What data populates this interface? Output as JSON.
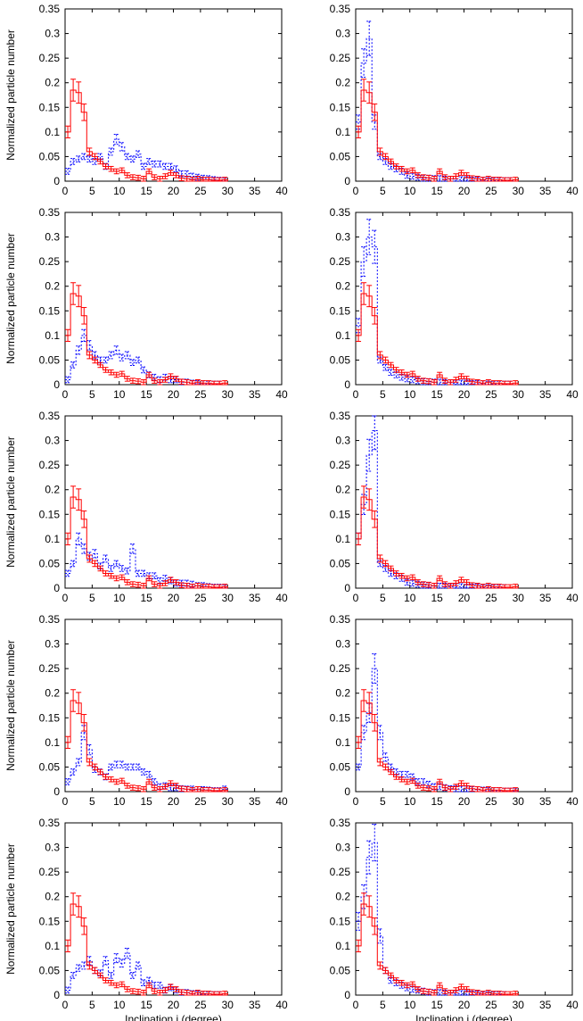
{
  "chart_data": {
    "type": "histogram-grid",
    "xlabel": "Inclination i (degree)",
    "ylabel": "Normalized particle number",
    "xlim": [
      0,
      40
    ],
    "ylim": [
      0,
      0.35
    ],
    "xticks": [
      "0",
      "5",
      "10",
      "15",
      "20",
      "25",
      "30",
      "35",
      "40"
    ],
    "yticks": [
      "0",
      "0.05",
      "0.1",
      "0.15",
      "0.2",
      "0.25",
      "0.3",
      "0.35"
    ],
    "colors": {
      "reference": "#ff0000",
      "model": "#0000ff",
      "axis": "#000000"
    },
    "reference_series": {
      "style": "solid-step-with-errorbars",
      "bin_width": 1,
      "x": [
        0,
        1,
        2,
        3,
        4,
        5,
        6,
        7,
        8,
        9,
        10,
        11,
        12,
        13,
        14,
        15,
        16,
        17,
        18,
        19,
        20,
        21,
        22,
        23,
        24,
        25,
        26,
        27,
        28,
        29
      ],
      "values": [
        0.1,
        0.185,
        0.18,
        0.14,
        0.06,
        0.05,
        0.04,
        0.03,
        0.025,
        0.02,
        0.022,
        0.012,
        0.008,
        0.007,
        0.005,
        0.02,
        0.008,
        0.005,
        0.01,
        0.017,
        0.012,
        0.006,
        0.005,
        0.003,
        0.005,
        0.003,
        0.003,
        0.002,
        0.002,
        0.003
      ]
    },
    "panels": [
      {
        "row": 1,
        "col": 1,
        "model_values": [
          0.02,
          0.04,
          0.045,
          0.05,
          0.045,
          0.04,
          0.05,
          0.03,
          0.06,
          0.085,
          0.07,
          0.05,
          0.045,
          0.055,
          0.03,
          0.04,
          0.035,
          0.035,
          0.03,
          0.03,
          0.025,
          0.015,
          0.015,
          0.01,
          0.008,
          0.006,
          0.005,
          0.003,
          0.002,
          0.001
        ]
      },
      {
        "row": 1,
        "col": 2,
        "model_values": [
          0.12,
          0.24,
          0.29,
          0.12,
          0.05,
          0.04,
          0.03,
          0.025,
          0.02,
          0.012,
          0.01,
          0.008,
          0.006,
          0.006,
          0.005,
          0.005,
          0.004,
          0.004,
          0.004,
          0.003,
          0.003,
          0.002,
          0.002,
          0.002,
          0.001,
          0.001,
          0.001,
          0.001,
          0.001,
          0.0
        ]
      },
      {
        "row": 2,
        "col": 1,
        "model_values": [
          0.01,
          0.04,
          0.07,
          0.1,
          0.08,
          0.06,
          0.05,
          0.05,
          0.06,
          0.07,
          0.055,
          0.06,
          0.045,
          0.05,
          0.03,
          0.02,
          0.015,
          0.01,
          0.015,
          0.01,
          0.01,
          0.005,
          0.005,
          0.003,
          0.002,
          0.002,
          0.001,
          0.001,
          0.001,
          0.0
        ]
      },
      {
        "row": 2,
        "col": 2,
        "model_values": [
          0.12,
          0.25,
          0.3,
          0.28,
          0.05,
          0.035,
          0.025,
          0.02,
          0.015,
          0.012,
          0.01,
          0.008,
          0.006,
          0.006,
          0.005,
          0.005,
          0.004,
          0.004,
          0.003,
          0.003,
          0.003,
          0.002,
          0.002,
          0.002,
          0.001,
          0.001,
          0.001,
          0.001,
          0.001,
          0.0
        ]
      },
      {
        "row": 3,
        "col": 1,
        "model_values": [
          0.03,
          0.05,
          0.1,
          0.08,
          0.065,
          0.07,
          0.045,
          0.06,
          0.04,
          0.05,
          0.04,
          0.035,
          0.08,
          0.03,
          0.03,
          0.025,
          0.025,
          0.015,
          0.02,
          0.015,
          0.01,
          0.01,
          0.01,
          0.008,
          0.005,
          0.005,
          0.003,
          0.002,
          0.002,
          0.001
        ]
      },
      {
        "row": 3,
        "col": 2,
        "model_values": [
          0.1,
          0.17,
          0.27,
          0.32,
          0.05,
          0.04,
          0.03,
          0.025,
          0.02,
          0.012,
          0.01,
          0.008,
          0.006,
          0.005,
          0.004,
          0.004,
          0.004,
          0.003,
          0.003,
          0.003,
          0.002,
          0.002,
          0.002,
          0.001,
          0.001,
          0.001,
          0.001,
          0.001,
          0.0,
          0.0
        ]
      },
      {
        "row": 4,
        "col": 1,
        "model_values": [
          0.02,
          0.04,
          0.06,
          0.12,
          0.085,
          0.045,
          0.04,
          0.03,
          0.05,
          0.055,
          0.055,
          0.05,
          0.05,
          0.05,
          0.04,
          0.035,
          0.02,
          0.01,
          0.012,
          0.008,
          0.008,
          0.006,
          0.005,
          0.005,
          0.004,
          0.004,
          0.003,
          0.002,
          0.002,
          0.005
        ]
      },
      {
        "row": 4,
        "col": 2,
        "model_values": [
          0.05,
          0.12,
          0.16,
          0.25,
          0.12,
          0.07,
          0.05,
          0.04,
          0.035,
          0.035,
          0.03,
          0.02,
          0.02,
          0.015,
          0.01,
          0.01,
          0.008,
          0.006,
          0.006,
          0.005,
          0.005,
          0.004,
          0.004,
          0.003,
          0.002,
          0.002,
          0.002,
          0.001,
          0.001,
          0.001
        ]
      },
      {
        "row": 5,
        "col": 1,
        "model_values": [
          0.01,
          0.04,
          0.055,
          0.06,
          0.07,
          0.05,
          0.045,
          0.07,
          0.04,
          0.075,
          0.065,
          0.085,
          0.04,
          0.06,
          0.025,
          0.03,
          0.02,
          0.02,
          0.01,
          0.015,
          0.01,
          0.005,
          0.005,
          0.003,
          0.002,
          0.002,
          0.001,
          0.001,
          0.001,
          0.0
        ]
      },
      {
        "row": 5,
        "col": 2,
        "model_values": [
          0.15,
          0.2,
          0.28,
          0.31,
          0.12,
          0.05,
          0.03,
          0.025,
          0.02,
          0.015,
          0.012,
          0.01,
          0.008,
          0.006,
          0.005,
          0.005,
          0.004,
          0.004,
          0.003,
          0.003,
          0.003,
          0.002,
          0.002,
          0.001,
          0.001,
          0.001,
          0.001,
          0.001,
          0.0,
          0.0
        ]
      }
    ]
  }
}
